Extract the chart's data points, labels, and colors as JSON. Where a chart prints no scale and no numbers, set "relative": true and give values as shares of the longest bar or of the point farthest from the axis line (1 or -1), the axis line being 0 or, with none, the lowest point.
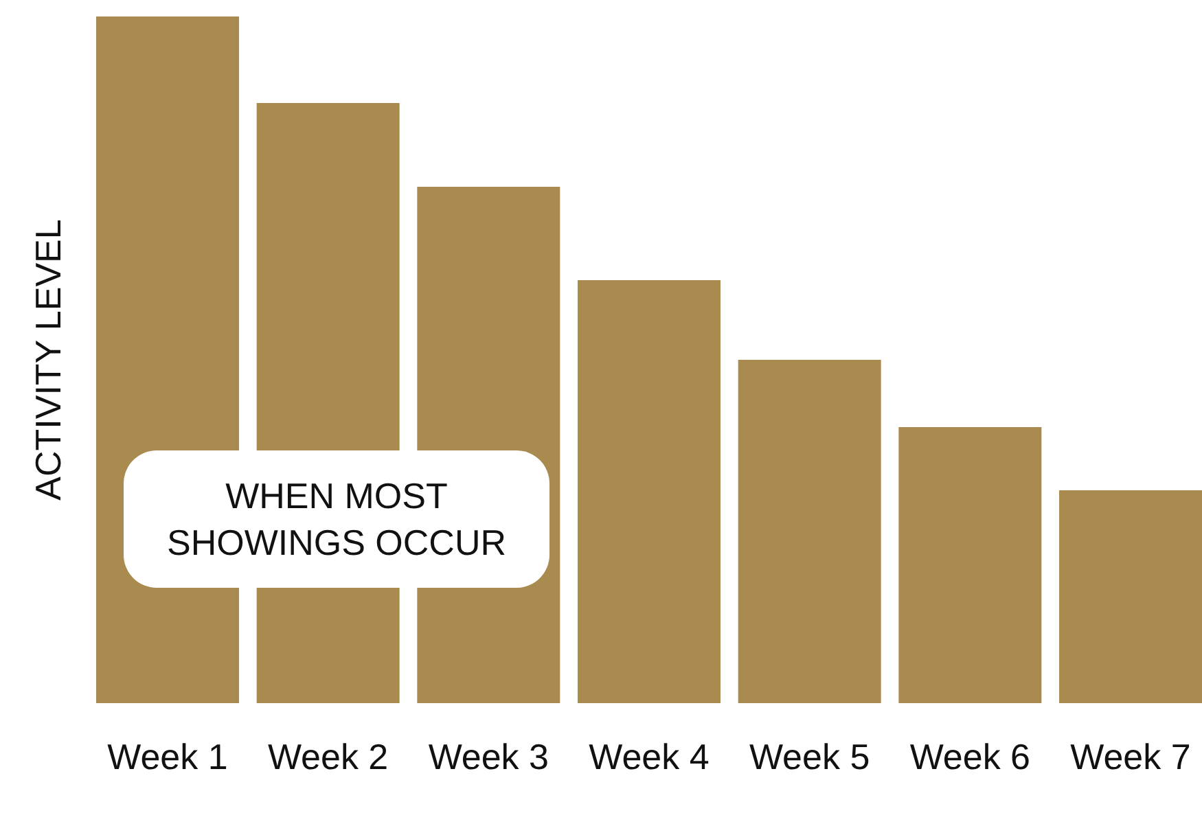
{
  "chart_data": {
    "type": "bar",
    "relative": true,
    "ylabel": "ACTIVITY LEVEL",
    "categories": [
      "Week 1",
      "Week 2",
      "Week 3",
      "Week 4",
      "Week 5",
      "Week 6",
      "Week 7"
    ],
    "values": [
      1,
      0.874,
      0.752,
      0.616,
      0.5,
      0.402,
      0.31
    ],
    "color": "#a98b50",
    "annotations": [
      "WHEN MOST\nSHOWINGS OCCUR"
    ]
  }
}
